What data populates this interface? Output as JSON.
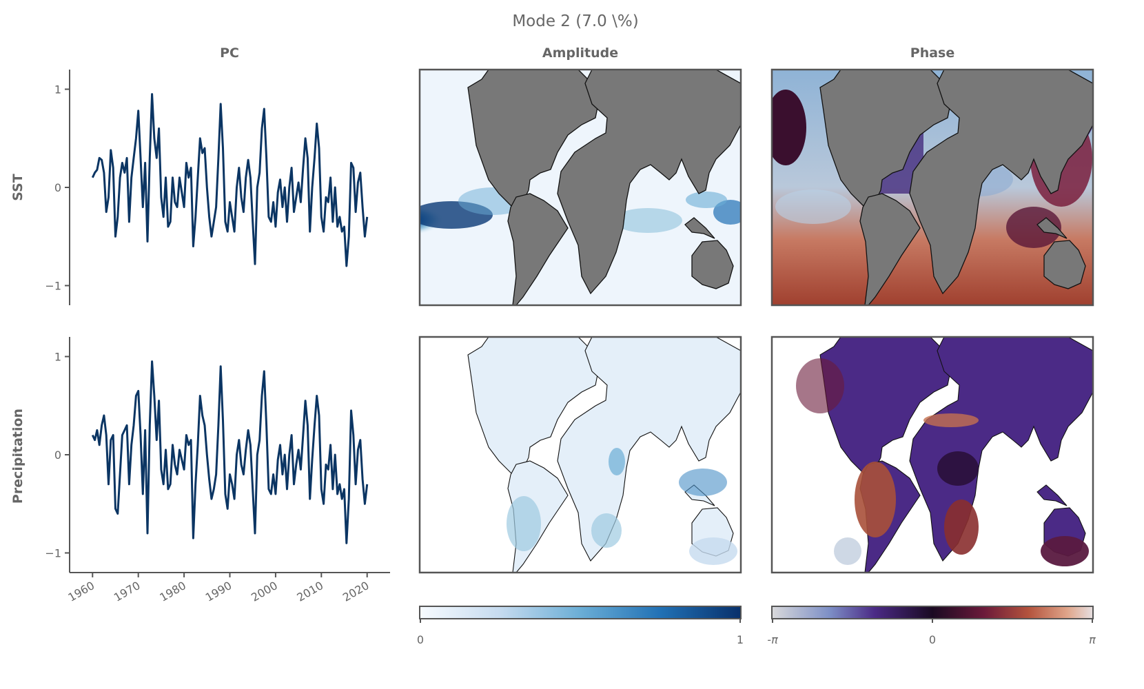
{
  "figure": {
    "suptitle": "Mode 2 (7.0 \\%)",
    "column_titles": [
      "PC",
      "Amplitude",
      "Phase"
    ],
    "row_labels": [
      "SST",
      "Precipitation"
    ]
  },
  "colors": {
    "pc_line": "#0b3563",
    "land": "#787878",
    "amplitude_cmap": [
      "#f7fbff",
      "#c6dbef",
      "#6baed6",
      "#2171b5",
      "#08306b"
    ],
    "phase_cmap": [
      "#d9d9db",
      "#7d8fc6",
      "#4b2a86",
      "#1a0a22",
      "#6b1a3a",
      "#b4533d",
      "#e0a58a",
      "#e6dfe1"
    ]
  },
  "colorbars": {
    "amplitude": {
      "ticks": [
        "0",
        "1"
      ]
    },
    "phase": {
      "ticks": [
        "-π",
        "0",
        "π"
      ]
    }
  },
  "chart_data": [
    {
      "type": "line",
      "row": "SST",
      "xlim": [
        1958,
        2022
      ],
      "ylim": [
        -1.2,
        1.2
      ],
      "xticks": [
        1960,
        1970,
        1980,
        1990,
        2000,
        2010,
        2020
      ],
      "yticks": [
        -1,
        0,
        1
      ],
      "x_tick_labels": [
        "1960",
        "1970",
        "1980",
        "1990",
        "2000",
        "2010",
        "2020"
      ],
      "y_tick_labels": [
        "−1",
        "0",
        "1"
      ],
      "x": [
        1960,
        1960.5,
        1961,
        1961.5,
        1962,
        1962.5,
        1963,
        1963.5,
        1964,
        1964.5,
        1965,
        1965.5,
        1966,
        1966.5,
        1967,
        1967.5,
        1968,
        1968.5,
        1969,
        1969.5,
        1970,
        1970.5,
        1971,
        1971.5,
        1972,
        1972.5,
        1973,
        1973.5,
        1974,
        1974.5,
        1975,
        1975.5,
        1976,
        1976.5,
        1977,
        1977.5,
        1978,
        1978.5,
        1979,
        1979.5,
        1980,
        1980.5,
        1981,
        1981.5,
        1982,
        1982.5,
        1983,
        1983.5,
        1984,
        1984.5,
        1985,
        1985.5,
        1986,
        1986.5,
        1987,
        1987.5,
        1988,
        1988.5,
        1989,
        1989.5,
        1990,
        1990.5,
        1991,
        1991.5,
        1992,
        1992.5,
        1993,
        1993.5,
        1994,
        1994.5,
        1995,
        1995.5,
        1996,
        1996.5,
        1997,
        1997.5,
        1998,
        1998.5,
        1999,
        1999.5,
        2000,
        2000.5,
        2001,
        2001.5,
        2002,
        2002.5,
        2003,
        2003.5,
        2004,
        2004.5,
        2005,
        2005.5,
        2006,
        2006.5,
        2007,
        2007.5,
        2008,
        2008.5,
        2009,
        2009.5,
        2010,
        2010.5,
        2011,
        2011.5,
        2012,
        2012.5,
        2013,
        2013.5,
        2014,
        2014.5,
        2015,
        2015.5,
        2016,
        2016.5,
        2017,
        2017.5,
        2018,
        2018.5,
        2019,
        2019.5,
        2020
      ],
      "y": [
        0.1,
        0.15,
        0.18,
        0.3,
        0.28,
        0.15,
        -0.25,
        -0.1,
        0.38,
        0.2,
        -0.5,
        -0.3,
        0.1,
        0.25,
        0.15,
        0.3,
        -0.35,
        0.1,
        0.3,
        0.5,
        0.78,
        0.3,
        -0.2,
        0.25,
        -0.55,
        0.3,
        0.95,
        0.5,
        0.3,
        0.6,
        -0.1,
        -0.3,
        0.1,
        -0.4,
        -0.35,
        0.1,
        -0.15,
        -0.2,
        0.1,
        -0.05,
        -0.2,
        0.25,
        0.1,
        0.2,
        -0.6,
        -0.3,
        0.1,
        0.5,
        0.35,
        0.4,
        0.0,
        -0.3,
        -0.5,
        -0.35,
        -0.2,
        0.3,
        0.85,
        0.4,
        -0.35,
        -0.45,
        -0.15,
        -0.3,
        -0.45,
        0.0,
        0.2,
        -0.1,
        -0.25,
        0.1,
        0.28,
        0.1,
        -0.35,
        -0.78,
        0.0,
        0.15,
        0.6,
        0.8,
        0.3,
        -0.3,
        -0.35,
        -0.15,
        -0.4,
        -0.05,
        0.08,
        -0.2,
        0.0,
        -0.35,
        0.0,
        0.2,
        -0.25,
        -0.1,
        0.05,
        -0.15,
        0.2,
        0.5,
        0.3,
        -0.45,
        0.0,
        0.3,
        0.65,
        0.4,
        -0.3,
        -0.45,
        -0.1,
        -0.15,
        0.1,
        -0.35,
        0.0,
        -0.4,
        -0.3,
        -0.45,
        -0.4,
        -0.8,
        -0.5,
        0.25,
        0.2,
        -0.25,
        0.05,
        0.15,
        -0.2,
        -0.5,
        -0.3
      ]
    },
    {
      "type": "line",
      "row": "Precipitation",
      "xlim": [
        1958,
        2022
      ],
      "ylim": [
        -1.2,
        1.2
      ],
      "xticks": [
        1960,
        1970,
        1980,
        1990,
        2000,
        2010,
        2020
      ],
      "yticks": [
        -1,
        0,
        1
      ],
      "x_tick_labels": [
        "1960",
        "1970",
        "1980",
        "1990",
        "2000",
        "2010",
        "2020"
      ],
      "y_tick_labels": [
        "−1",
        "0",
        "1"
      ],
      "x": [
        1960,
        1960.5,
        1961,
        1961.5,
        1962,
        1962.5,
        1963,
        1963.5,
        1964,
        1964.5,
        1965,
        1965.5,
        1966,
        1966.5,
        1967,
        1967.5,
        1968,
        1968.5,
        1969,
        1969.5,
        1970,
        1970.5,
        1971,
        1971.5,
        1972,
        1972.5,
        1973,
        1973.5,
        1974,
        1974.5,
        1975,
        1975.5,
        1976,
        1976.5,
        1977,
        1977.5,
        1978,
        1978.5,
        1979,
        1979.5,
        1980,
        1980.5,
        1981,
        1981.5,
        1982,
        1982.5,
        1983,
        1983.5,
        1984,
        1984.5,
        1985,
        1985.5,
        1986,
        1986.5,
        1987,
        1987.5,
        1988,
        1988.5,
        1989,
        1989.5,
        1990,
        1990.5,
        1991,
        1991.5,
        1992,
        1992.5,
        1993,
        1993.5,
        1994,
        1994.5,
        1995,
        1995.5,
        1996,
        1996.5,
        1997,
        1997.5,
        1998,
        1998.5,
        1999,
        1999.5,
        2000,
        2000.5,
        2001,
        2001.5,
        2002,
        2002.5,
        2003,
        2003.5,
        2004,
        2004.5,
        2005,
        2005.5,
        2006,
        2006.5,
        2007,
        2007.5,
        2008,
        2008.5,
        2009,
        2009.5,
        2010,
        2010.5,
        2011,
        2011.5,
        2012,
        2012.5,
        2013,
        2013.5,
        2014,
        2014.5,
        2015,
        2015.5,
        2016,
        2016.5,
        2017,
        2017.5,
        2018,
        2018.5,
        2019,
        2019.5,
        2020
      ],
      "y": [
        0.2,
        0.15,
        0.25,
        0.1,
        0.3,
        0.4,
        0.2,
        -0.3,
        0.15,
        0.2,
        -0.55,
        -0.6,
        -0.2,
        0.2,
        0.25,
        0.3,
        -0.3,
        0.1,
        0.3,
        0.6,
        0.65,
        0.2,
        -0.4,
        0.25,
        -0.8,
        0.3,
        0.95,
        0.6,
        0.15,
        0.55,
        -0.15,
        -0.3,
        0.05,
        -0.35,
        -0.3,
        0.1,
        -0.1,
        -0.2,
        0.05,
        -0.05,
        -0.15,
        0.2,
        0.1,
        0.15,
        -0.85,
        -0.3,
        0.1,
        0.6,
        0.4,
        0.3,
        0.0,
        -0.25,
        -0.45,
        -0.35,
        -0.2,
        0.3,
        0.9,
        0.35,
        -0.4,
        -0.55,
        -0.2,
        -0.3,
        -0.45,
        0.0,
        0.15,
        -0.1,
        -0.2,
        0.05,
        0.25,
        0.1,
        -0.35,
        -0.8,
        0.0,
        0.15,
        0.6,
        0.85,
        0.3,
        -0.35,
        -0.4,
        -0.2,
        -0.4,
        -0.05,
        0.1,
        -0.2,
        0.0,
        -0.35,
        0.0,
        0.2,
        -0.3,
        -0.1,
        0.05,
        -0.15,
        0.2,
        0.55,
        0.3,
        -0.45,
        -0.05,
        0.3,
        0.6,
        0.4,
        -0.35,
        -0.5,
        -0.1,
        -0.15,
        0.1,
        -0.35,
        0.0,
        -0.4,
        -0.3,
        -0.45,
        -0.35,
        -0.9,
        -0.45,
        0.45,
        0.2,
        -0.3,
        0.05,
        0.15,
        -0.25,
        -0.5,
        -0.3
      ]
    }
  ]
}
